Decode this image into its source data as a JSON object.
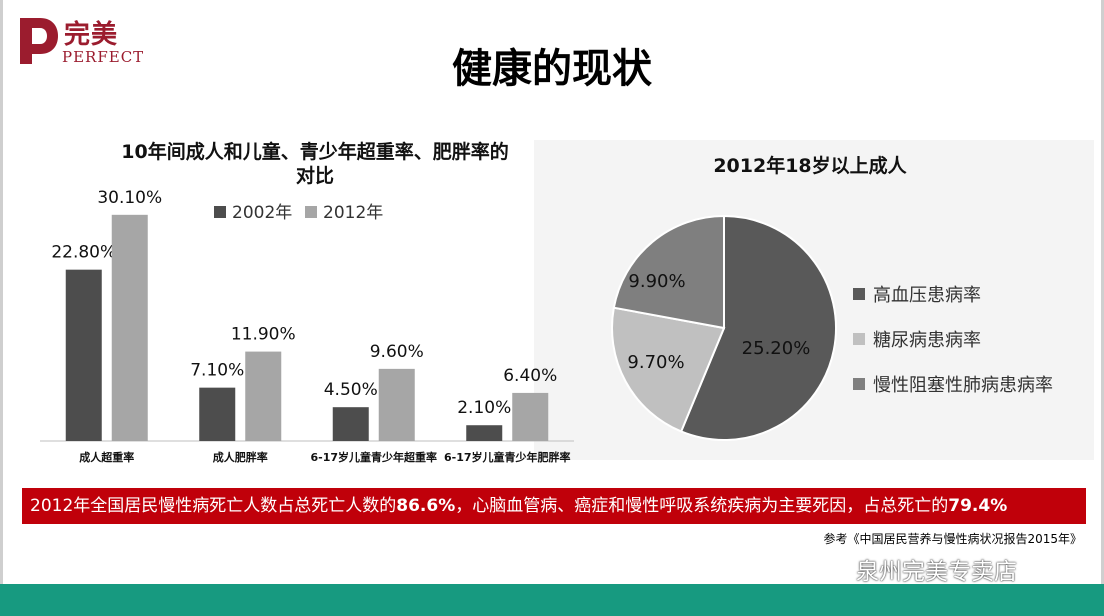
{
  "header": {
    "logo_cn": "完美",
    "logo_en": "PERFECT",
    "title": "健康的现状"
  },
  "chart_data": [
    {
      "type": "bar",
      "title": "10年间成人和儿童、青少年超重率、肥胖率的对比",
      "title_line1": "10年间成人和儿童、青少年超重率、肥胖率的",
      "title_line2": "对比",
      "categories": [
        "成人超重率",
        "成人肥胖率",
        "6-17岁儿童青少年超重率",
        "6-17岁儿童青少年肥胖率"
      ],
      "series": [
        {
          "name": "2002年",
          "values": [
            22.8,
            7.1,
            4.5,
            2.1
          ],
          "labels": [
            "22.80%",
            "7.10%",
            "4.50%",
            "2.10%"
          ],
          "color": "#4d4d4d"
        },
        {
          "name": "2012年",
          "values": [
            30.1,
            11.9,
            9.6,
            6.4
          ],
          "labels": [
            "30.10%",
            "11.90%",
            "9.60%",
            "6.40%"
          ],
          "color": "#a6a6a6"
        }
      ],
      "ylim": [
        0,
        35
      ],
      "grid": false,
      "legend": "top-right"
    },
    {
      "type": "pie",
      "title": "2012年18岁以上成人",
      "slices": [
        {
          "name": "高血压患病率",
          "value": 25.2,
          "label": "25.20%",
          "color": "#595959"
        },
        {
          "name": "糖尿病患病率",
          "value": 9.7,
          "label": "9.70%",
          "color": "#c0c0c0"
        },
        {
          "name": "慢性阻塞性肺病患病率",
          "value": 9.9,
          "label": "9.90%",
          "color": "#7f7f7f"
        }
      ],
      "legend": "right"
    }
  ],
  "banner": {
    "part1": "2012年全国居民慢性病死亡人数占总死亡人数的",
    "value1": "86.6%",
    "part2": "，心脑血管病、癌症和慢性呼吸系统疾病为主要死因，占总死亡的",
    "value2": "79.4%"
  },
  "reference": "参考《中国居民营养与慢性病状况报告2015年》",
  "watermark": "泉州完美专卖店",
  "colors": {
    "brand": "#9b1c2e",
    "banner": "#c0000a",
    "footer": "#179a80"
  }
}
